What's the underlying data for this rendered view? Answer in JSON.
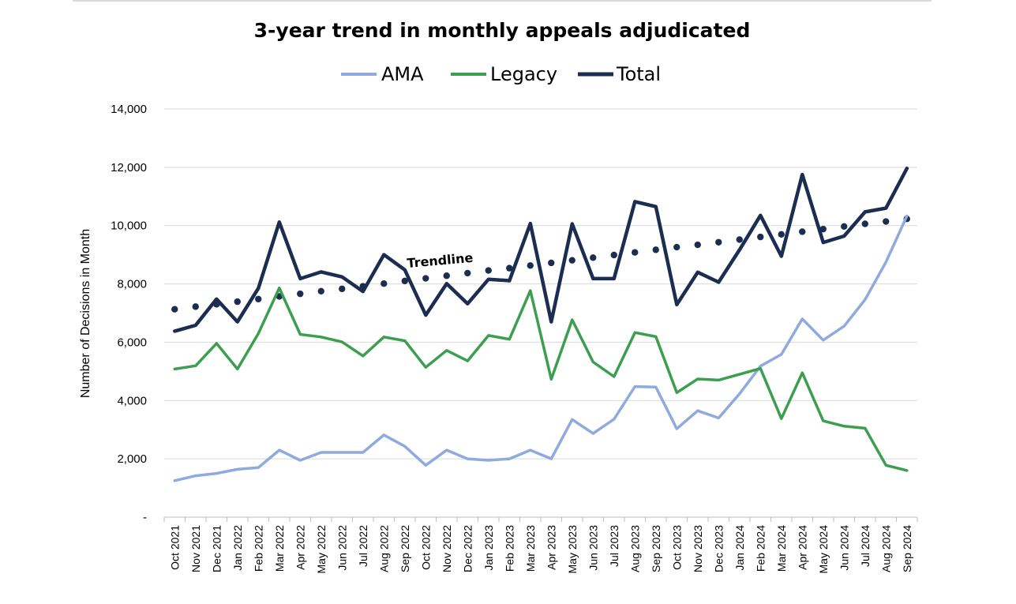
{
  "chart_data": {
    "type": "line",
    "title": "3-year trend in monthly appeals adjudicated",
    "ylabel": "Number  of Decisions in Month",
    "xlabel": "",
    "ylim": [
      0,
      14000
    ],
    "yticks": [
      0,
      2000,
      4000,
      6000,
      8000,
      10000,
      12000,
      14000
    ],
    "ytick_labels": [
      "-",
      "2,000",
      "4,000",
      "6,000",
      "8,000",
      "10,000",
      "12,000",
      "14,000"
    ],
    "grid": "horizontal",
    "legend_position": "top-center",
    "annotation": "Trendline",
    "categories": [
      "Oct 2021",
      "Nov 2021",
      "Dec 2021",
      "Jan 2022",
      "Feb 2022",
      "Mar 2022",
      "Apr 2022",
      "May 2022",
      "Jun 2022",
      "Jul 2022",
      "Aug 2022",
      "Sep 2022",
      "Oct 2022",
      "Nov 2022",
      "Dec 2022",
      "Jan 2023",
      "Feb 2023",
      "Mar 2023",
      "Apr 2023",
      "May 2023",
      "Jun 2023",
      "Jul 2023",
      "Aug 2023",
      "Sep 2023",
      "Oct 2023",
      "Nov 2023",
      "Dec 2023",
      "Jan 2024",
      "Feb 2024",
      "Mar 2024",
      "Apr 2024",
      "May 2024",
      "Jun 2024",
      "Jul 2024",
      "Aug 2024",
      "Sep 2024"
    ],
    "series": [
      {
        "name": "AMA",
        "color": "#8faadc",
        "style": "solid",
        "values": [
          1250,
          1420,
          1500,
          1640,
          1700,
          2300,
          1950,
          2220,
          2220,
          2220,
          2820,
          2430,
          1780,
          2300,
          2000,
          1950,
          2000,
          2300,
          2000,
          3350,
          2870,
          3360,
          4480,
          4460,
          3030,
          3650,
          3400,
          4230,
          5180,
          5580,
          6800,
          6070,
          6550,
          7460,
          8750,
          10330
        ]
      },
      {
        "name": "Legacy",
        "color": "#3c9e4f",
        "style": "solid",
        "values": [
          5080,
          5190,
          5960,
          5080,
          6300,
          7860,
          6270,
          6180,
          6010,
          5530,
          6180,
          6050,
          5140,
          5720,
          5360,
          6230,
          6100,
          7770,
          4730,
          6770,
          5320,
          4820,
          6330,
          6190,
          4270,
          4740,
          4700,
          4900,
          5100,
          3380,
          4950,
          3300,
          3120,
          3050,
          1780,
          1600
        ]
      },
      {
        "name": "Total",
        "color": "#1b2d50",
        "style": "solid",
        "values": [
          6380,
          6580,
          7480,
          6700,
          7850,
          10120,
          8180,
          8410,
          8240,
          7740,
          9000,
          8480,
          6930,
          8010,
          7320,
          8160,
          8110,
          10070,
          6700,
          10060,
          8180,
          8180,
          10820,
          10650,
          7290,
          8400,
          8060,
          9170,
          10350,
          8950,
          11750,
          9420,
          9640,
          10470,
          10600,
          11960
        ]
      },
      {
        "name": "Trendline",
        "color": "#1b2d50",
        "style": "dotted",
        "values": [
          7130,
          7220,
          7300,
          7390,
          7480,
          7570,
          7660,
          7750,
          7830,
          7920,
          8010,
          8100,
          8190,
          8280,
          8370,
          8460,
          8540,
          8630,
          8720,
          8810,
          8900,
          8990,
          9080,
          9170,
          9260,
          9340,
          9430,
          9520,
          9610,
          9700,
          9790,
          9880,
          9970,
          10060,
          10140,
          10230
        ]
      }
    ]
  },
  "legend": [
    {
      "label": "AMA",
      "color": "#8faadc"
    },
    {
      "label": "Legacy",
      "color": "#3c9e4f"
    },
    {
      "label": "Total",
      "color": "#1b2d50"
    }
  ]
}
